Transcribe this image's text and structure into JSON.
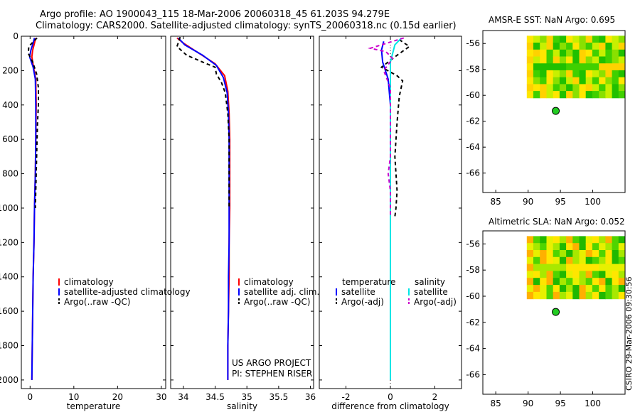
{
  "header": {
    "line1": "Argo profile: AO 1900043_115 18-Mar-2006 20060318_45 61.203S 94.279E",
    "line2": "Climatology: CARS2000. Satellite-adjusted climatology: synTS_20060318.nc (0.15d earlier)"
  },
  "credit": "CSIRO 29-Mar-2006 09:30:56",
  "colors": {
    "red": "#ff0000",
    "blue": "#0000ff",
    "black": "#000000",
    "cyan": "#00e5e5",
    "magenta": "#cc00cc"
  },
  "chart_data": [
    {
      "type": "line",
      "id": "temperature",
      "xlabel": "temperature",
      "ylabel": "",
      "xlim": [
        -2,
        31
      ],
      "ylim": [
        2050,
        0
      ],
      "xticks": [
        0,
        10,
        20,
        30
      ],
      "yticks": [
        0,
        200,
        400,
        600,
        800,
        1000,
        1200,
        1400,
        1600,
        1800,
        2000
      ],
      "legend": [
        "climatology",
        "satellite-adjusted climatology",
        "Argo(..raw -QC)"
      ],
      "series": [
        {
          "name": "climatology",
          "color": "red",
          "dash": "none",
          "points": [
            [
              1.3,
              10
            ],
            [
              1.0,
              40
            ],
            [
              0.6,
              80
            ],
            [
              0.4,
              120
            ],
            [
              0.8,
              180
            ],
            [
              1.3,
              250
            ],
            [
              1.4,
              400
            ],
            [
              1.3,
              600
            ],
            [
              1.2,
              800
            ],
            [
              1.0,
              1000
            ],
            [
              0.9,
              1200
            ],
            [
              0.7,
              1400
            ],
            [
              0.6,
              1600
            ],
            [
              0.5,
              1800
            ],
            [
              0.4,
              2000
            ]
          ]
        },
        {
          "name": "satellite-adjusted climatology",
          "color": "blue",
          "dash": "none",
          "points": [
            [
              1.0,
              10
            ],
            [
              0.7,
              40
            ],
            [
              0.2,
              80
            ],
            [
              -0.1,
              120
            ],
            [
              0.7,
              180
            ],
            [
              1.2,
              250
            ],
            [
              1.3,
              400
            ],
            [
              1.3,
              600
            ],
            [
              1.2,
              800
            ],
            [
              1.0,
              1000
            ],
            [
              0.9,
              1200
            ],
            [
              0.7,
              1400
            ],
            [
              0.6,
              1600
            ],
            [
              0.5,
              1800
            ],
            [
              0.4,
              2000
            ]
          ]
        },
        {
          "name": "Argo(..raw -QC)",
          "color": "black",
          "dash": "5,4",
          "points": [
            [
              1.6,
              10
            ],
            [
              0.8,
              30
            ],
            [
              -0.3,
              60
            ],
            [
              -0.4,
              100
            ],
            [
              0.6,
              150
            ],
            [
              1.5,
              220
            ],
            [
              1.9,
              300
            ],
            [
              1.9,
              400
            ],
            [
              1.7,
              500
            ],
            [
              1.6,
              600
            ],
            [
              1.4,
              800
            ],
            [
              1.2,
              1000
            ]
          ]
        }
      ]
    },
    {
      "type": "line",
      "id": "salinity",
      "xlabel": "salinity",
      "ylabel": "",
      "xlim": [
        33.8,
        36.05
      ],
      "ylim": [
        2050,
        0
      ],
      "xticks": [
        34,
        34.5,
        35,
        35.5,
        36
      ],
      "xticklabels": [
        "34",
        "34.5",
        "35",
        "35.5",
        "36"
      ],
      "legend": [
        "climatology",
        "satellite adj. clim.",
        "Argo(..raw -QC)"
      ],
      "annotation": [
        "US ARGO PROJECT",
        "PI: STEPHEN RISER"
      ],
      "series": [
        {
          "name": "climatology",
          "color": "red",
          "dash": "none",
          "points": [
            [
              33.9,
              10
            ],
            [
              34.0,
              40
            ],
            [
              34.25,
              100
            ],
            [
              34.5,
              160
            ],
            [
              34.65,
              230
            ],
            [
              34.7,
              320
            ],
            [
              34.72,
              450
            ],
            [
              34.73,
              600
            ],
            [
              34.73,
              800
            ],
            [
              34.73,
              1000
            ],
            [
              34.72,
              1200
            ],
            [
              34.72,
              1400
            ],
            [
              34.71,
              1600
            ],
            [
              34.7,
              1800
            ],
            [
              34.7,
              2000
            ]
          ]
        },
        {
          "name": "satellite adj. clim.",
          "color": "blue",
          "dash": "none",
          "points": [
            [
              33.92,
              10
            ],
            [
              34.02,
              50
            ],
            [
              34.3,
              110
            ],
            [
              34.52,
              170
            ],
            [
              34.63,
              240
            ],
            [
              34.69,
              330
            ],
            [
              34.71,
              450
            ],
            [
              34.72,
              600
            ],
            [
              34.72,
              800
            ],
            [
              34.72,
              1000
            ],
            [
              34.72,
              1200
            ],
            [
              34.71,
              1400
            ],
            [
              34.71,
              1600
            ],
            [
              34.7,
              1800
            ],
            [
              34.7,
              2000
            ]
          ]
        },
        {
          "name": "Argo(..raw -QC)",
          "color": "black",
          "dash": "5,4",
          "points": [
            [
              33.95,
              5
            ],
            [
              33.9,
              60
            ],
            [
              34.05,
              110
            ],
            [
              34.3,
              150
            ],
            [
              34.5,
              180
            ],
            [
              34.52,
              220
            ],
            [
              34.6,
              270
            ],
            [
              34.66,
              330
            ],
            [
              34.7,
              450
            ],
            [
              34.72,
              600
            ],
            [
              34.72,
              800
            ],
            [
              34.72,
              1000
            ]
          ]
        }
      ]
    },
    {
      "type": "line",
      "id": "difference",
      "xlabel": "difference from climatology",
      "ylabel": "",
      "xlim": [
        -3.2,
        3.2
      ],
      "ylim": [
        2050,
        0
      ],
      "xticks": [
        -2,
        0,
        2
      ],
      "legend_titles": [
        "temperature",
        "salinity"
      ],
      "legend": [
        "satellite",
        "Argo(-adj)",
        "satellite",
        "Argo(-adj)"
      ],
      "series": [
        {
          "name": "temperature satellite",
          "color": "blue",
          "dash": "none",
          "points": [
            [
              -0.3,
              30
            ],
            [
              -0.4,
              80
            ],
            [
              -0.35,
              150
            ],
            [
              -0.1,
              250
            ],
            [
              0,
              400
            ],
            [
              0,
              800
            ],
            [
              0,
              1200
            ],
            [
              0,
              1600
            ],
            [
              0,
              2000
            ]
          ]
        },
        {
          "name": "temperature Argo(-adj)",
          "color": "black",
          "dash": "5,4",
          "points": [
            [
              0.4,
              20
            ],
            [
              0.85,
              60
            ],
            [
              0.2,
              120
            ],
            [
              -0.4,
              180
            ],
            [
              0.3,
              230
            ],
            [
              0.55,
              260
            ],
            [
              0.4,
              350
            ],
            [
              0.3,
              500
            ],
            [
              0.2,
              700
            ],
            [
              0.3,
              900
            ],
            [
              0.25,
              1000
            ],
            [
              0.2,
              1050
            ]
          ]
        },
        {
          "name": "salinity satellite",
          "color": "cyan",
          "dash": "none",
          "points": [
            [
              0.5,
              10
            ],
            [
              0.2,
              50
            ],
            [
              0,
              150
            ],
            [
              0,
              400
            ],
            [
              0,
              800
            ],
            [
              0,
              1200
            ],
            [
              0,
              1600
            ],
            [
              0,
              2000
            ]
          ]
        },
        {
          "name": "salinity Argo(-adj)",
          "color": "magenta",
          "dash": "5,4",
          "points": [
            [
              0.6,
              10
            ],
            [
              -0.9,
              70
            ],
            [
              -0.2,
              90
            ],
            [
              0.1,
              130
            ],
            [
              -0.3,
              200
            ],
            [
              0,
              300
            ],
            [
              0,
              500
            ],
            [
              0,
              700
            ],
            [
              -0.1,
              800
            ],
            [
              0,
              900
            ],
            [
              0,
              1050
            ]
          ]
        }
      ]
    },
    {
      "type": "heatmap",
      "id": "amsr-sst",
      "title": "AMSR-E SST: NaN Argo: 0.695",
      "xlim": [
        83,
        105
      ],
      "ylim": [
        -67.5,
        -55
      ],
      "xticks": [
        85,
        90,
        95,
        100
      ],
      "yticks": [
        -56,
        -58,
        -60,
        -62,
        -64,
        -66
      ],
      "field_extent": {
        "lon": [
          89.8,
          105
        ],
        "lat": [
          -60.2,
          -55.4
        ]
      },
      "argo_position": {
        "lon": 94.279,
        "lat": -61.203
      }
    },
    {
      "type": "heatmap",
      "id": "altimetric-sla",
      "title": "Altimetric SLA: NaN Argo: 0.052",
      "xlim": [
        83,
        105
      ],
      "ylim": [
        -67.5,
        -55
      ],
      "xticks": [
        85,
        90,
        95,
        100
      ],
      "yticks": [
        -56,
        -58,
        -60,
        -62,
        -64,
        -66
      ],
      "field_extent": {
        "lon": [
          89.8,
          105
        ],
        "lat": [
          -60.2,
          -55.4
        ]
      },
      "argo_position": {
        "lon": 94.279,
        "lat": -61.203
      }
    }
  ]
}
